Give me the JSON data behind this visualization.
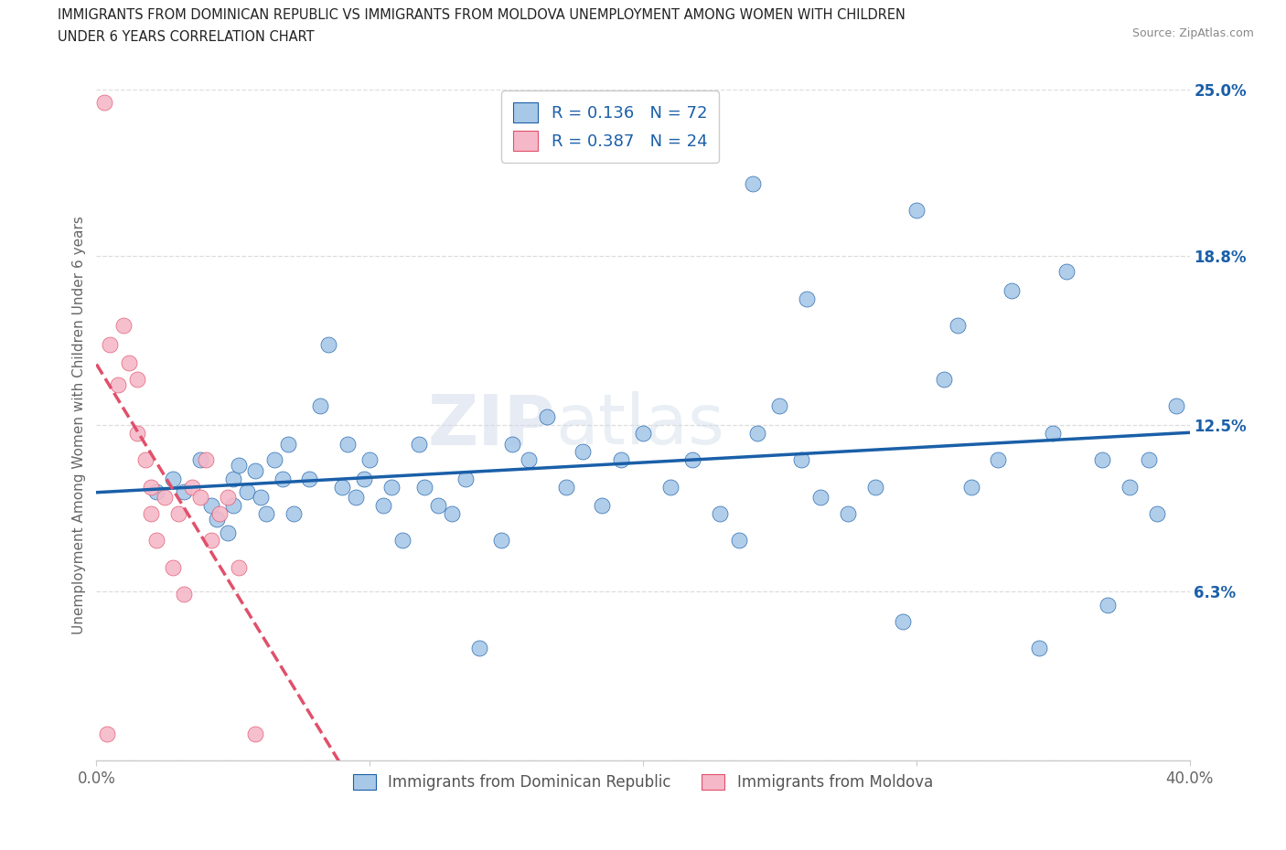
{
  "title_line1": "IMMIGRANTS FROM DOMINICAN REPUBLIC VS IMMIGRANTS FROM MOLDOVA UNEMPLOYMENT AMONG WOMEN WITH CHILDREN",
  "title_line2": "UNDER 6 YEARS CORRELATION CHART",
  "source": "Source: ZipAtlas.com",
  "ylabel": "Unemployment Among Women with Children Under 6 years",
  "xlim": [
    0.0,
    0.4
  ],
  "ylim": [
    0.0,
    0.25
  ],
  "yticks_right": [
    0.0,
    0.063,
    0.125,
    0.188,
    0.25
  ],
  "yticklabels_right": [
    "",
    "6.3%",
    "12.5%",
    "18.8%",
    "25.0%"
  ],
  "R_blue": 0.136,
  "N_blue": 72,
  "R_pink": 0.387,
  "N_pink": 24,
  "color_blue": "#a8c8e8",
  "color_pink": "#f5b8c8",
  "trendline_blue": "#1a5fa8",
  "trendline_pink": "#e0506a",
  "legend_blue": "Immigrants from Dominican Republic",
  "legend_pink": "Immigrants from Moldova",
  "watermark_zip": "ZIP",
  "watermark_atlas": "atlas",
  "background_color": "#ffffff",
  "blue_x": [
    0.022,
    0.028,
    0.032,
    0.038,
    0.042,
    0.044,
    0.048,
    0.05,
    0.05,
    0.052,
    0.055,
    0.058,
    0.06,
    0.062,
    0.065,
    0.068,
    0.07,
    0.072,
    0.078,
    0.082,
    0.085,
    0.09,
    0.092,
    0.095,
    0.098,
    0.1,
    0.105,
    0.108,
    0.112,
    0.118,
    0.12,
    0.125,
    0.13,
    0.135,
    0.14,
    0.148,
    0.152,
    0.158,
    0.165,
    0.172,
    0.178,
    0.185,
    0.192,
    0.2,
    0.21,
    0.218,
    0.228,
    0.235,
    0.242,
    0.25,
    0.258,
    0.265,
    0.275,
    0.285,
    0.295,
    0.31,
    0.32,
    0.33,
    0.345,
    0.355,
    0.368,
    0.378,
    0.388,
    0.395,
    0.24,
    0.26,
    0.3,
    0.315,
    0.335,
    0.35,
    0.37,
    0.385
  ],
  "blue_y": [
    0.1,
    0.105,
    0.1,
    0.112,
    0.095,
    0.09,
    0.085,
    0.105,
    0.095,
    0.11,
    0.1,
    0.108,
    0.098,
    0.092,
    0.112,
    0.105,
    0.118,
    0.092,
    0.105,
    0.132,
    0.155,
    0.102,
    0.118,
    0.098,
    0.105,
    0.112,
    0.095,
    0.102,
    0.082,
    0.118,
    0.102,
    0.095,
    0.092,
    0.105,
    0.042,
    0.082,
    0.118,
    0.112,
    0.128,
    0.102,
    0.115,
    0.095,
    0.112,
    0.122,
    0.102,
    0.112,
    0.092,
    0.082,
    0.122,
    0.132,
    0.112,
    0.098,
    0.092,
    0.102,
    0.052,
    0.142,
    0.102,
    0.112,
    0.042,
    0.182,
    0.112,
    0.102,
    0.092,
    0.132,
    0.215,
    0.172,
    0.205,
    0.162,
    0.175,
    0.122,
    0.058,
    0.112
  ],
  "pink_x": [
    0.003,
    0.005,
    0.008,
    0.01,
    0.012,
    0.015,
    0.015,
    0.018,
    0.02,
    0.02,
    0.022,
    0.025,
    0.028,
    0.03,
    0.032,
    0.035,
    0.038,
    0.04,
    0.042,
    0.045,
    0.048,
    0.052,
    0.058,
    0.004
  ],
  "pink_y": [
    0.245,
    0.155,
    0.14,
    0.162,
    0.148,
    0.142,
    0.122,
    0.112,
    0.102,
    0.092,
    0.082,
    0.098,
    0.072,
    0.092,
    0.062,
    0.102,
    0.098,
    0.112,
    0.082,
    0.092,
    0.098,
    0.072,
    0.01,
    0.01
  ],
  "trendline_pink_dashed": true
}
